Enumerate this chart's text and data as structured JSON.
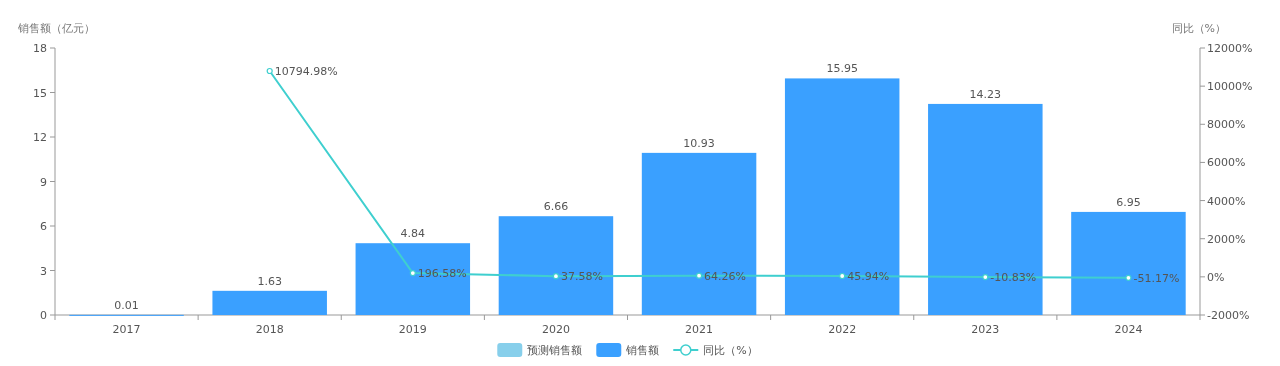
{
  "chart_data": {
    "type": "bar",
    "categories": [
      "2017",
      "2018",
      "2019",
      "2020",
      "2021",
      "2022",
      "2023",
      "2024"
    ],
    "ylabel": "销售额（亿元）",
    "y2label": "同比（%）",
    "ylim": [
      0,
      18
    ],
    "yticks": [
      0,
      3,
      6,
      9,
      12,
      15,
      18
    ],
    "y2lim": [
      -2000,
      12000
    ],
    "y2ticks": [
      {
        "value": -2000,
        "label": "-2000%"
      },
      {
        "value": 0,
        "label": "0%"
      },
      {
        "value": 2000,
        "label": "2000%"
      },
      {
        "value": 4000,
        "label": "4000%"
      },
      {
        "value": 6000,
        "label": "6000%"
      },
      {
        "value": 8000,
        "label": "8000%"
      },
      {
        "value": 10000,
        "label": "10000%"
      },
      {
        "value": 12000,
        "label": "12000%"
      }
    ],
    "series": [
      {
        "name": "预测销售额",
        "color": "#87cfeb",
        "values": [
          null,
          null,
          null,
          null,
          null,
          null,
          null,
          null
        ]
      },
      {
        "name": "销售额",
        "color": "#3aa0ff",
        "values": [
          0.01,
          1.63,
          4.84,
          6.66,
          10.93,
          15.95,
          14.23,
          6.95
        ]
      },
      {
        "name": "同比（%）",
        "type": "line",
        "axis": "y2",
        "color": "#3fcfcf",
        "marker": "circle",
        "values": [
          null,
          10794.98,
          196.58,
          37.58,
          64.26,
          45.94,
          -10.83,
          -51.17
        ],
        "value_labels": [
          null,
          "10794.98%",
          "196.58%",
          "37.58%",
          "64.26%",
          "45.94%",
          "-10.83%",
          "-51.17%"
        ]
      }
    ],
    "data_labels": true,
    "grid": false,
    "legend": "bottom"
  }
}
